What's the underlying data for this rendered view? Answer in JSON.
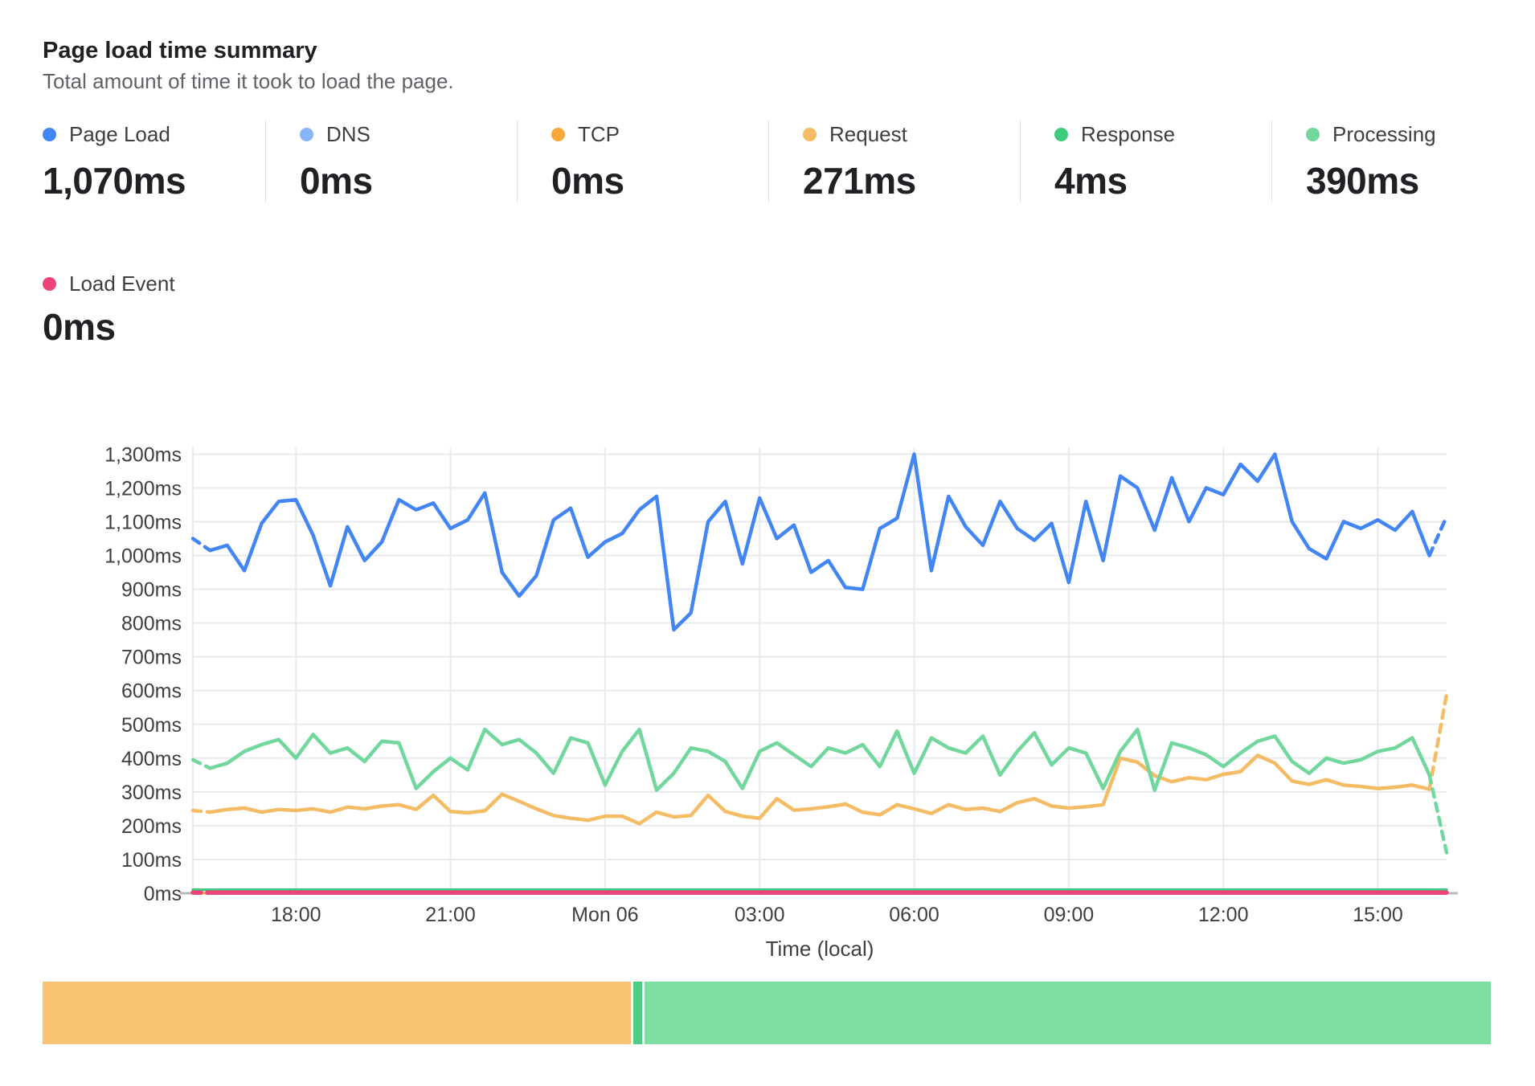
{
  "header": {
    "title": "Page load time summary",
    "subtitle": "Total amount of time it took to load the page."
  },
  "stats": [
    {
      "label": "Page Load",
      "value": "1,070ms",
      "color": "#4285f4"
    },
    {
      "label": "DNS",
      "value": "0ms",
      "color": "#8ab4f8"
    },
    {
      "label": "TCP",
      "value": "0ms",
      "color": "#f9a83c"
    },
    {
      "label": "Request",
      "value": "271ms",
      "color": "#f5bc66"
    },
    {
      "label": "Response",
      "value": "4ms",
      "color": "#3ecb7e"
    },
    {
      "label": "Processing",
      "value": "390ms",
      "color": "#71d79d"
    }
  ],
  "stats_row2": [
    {
      "label": "Load Event",
      "value": "0ms",
      "color": "#ec4378"
    }
  ],
  "chart_data": {
    "type": "line",
    "title": "Page load time summary",
    "xlabel": "Time (local)",
    "ylabel": "",
    "ylim": [
      0,
      1320
    ],
    "grid": true,
    "point_interval_minutes": 20,
    "y_ticks": [
      "0ms",
      "100ms",
      "200ms",
      "300ms",
      "400ms",
      "500ms",
      "600ms",
      "700ms",
      "800ms",
      "900ms",
      "1,000ms",
      "1,100ms",
      "1,200ms",
      "1,300ms"
    ],
    "x_ticks": [
      {
        "label": "18:00",
        "index": 6
      },
      {
        "label": "21:00",
        "index": 15
      },
      {
        "label": "Mon 06",
        "index": 24
      },
      {
        "label": "03:00",
        "index": 33
      },
      {
        "label": "06:00",
        "index": 42
      },
      {
        "label": "09:00",
        "index": 51
      },
      {
        "label": "12:00",
        "index": 60
      },
      {
        "label": "15:00",
        "index": 69
      }
    ],
    "series": [
      {
        "name": "DNS",
        "color": "#8ab4f8",
        "width": 3,
        "dash_head": false,
        "dash_tail": false,
        "values": {
          "constant": 0,
          "count": 74
        }
      },
      {
        "name": "TCP",
        "color": "#f9a83c",
        "width": 3,
        "dash_head": false,
        "dash_tail": false,
        "values": {
          "constant": 0,
          "count": 74
        }
      },
      {
        "name": "Response",
        "color": "#3ecb7e",
        "width": 3.5,
        "dash_head": false,
        "dash_tail": false,
        "values": {
          "constant": 10,
          "count": 74
        }
      },
      {
        "name": "Request",
        "color": "#f5bc66",
        "width": 4.5,
        "dash_head": true,
        "dash_tail": true,
        "values": [
          245,
          240,
          248,
          252,
          240,
          248,
          245,
          250,
          240,
          255,
          250,
          258,
          262,
          248,
          290,
          242,
          238,
          244,
          293,
          272,
          250,
          230,
          222,
          216,
          228,
          228,
          206,
          240,
          226,
          230,
          290,
          242,
          228,
          222,
          280,
          246,
          250,
          256,
          264,
          240,
          232,
          262,
          250,
          236,
          262,
          248,
          252,
          242,
          268,
          280,
          258,
          252,
          256,
          262,
          400,
          388,
          348,
          330,
          342,
          336,
          352,
          360,
          408,
          385,
          332,
          322,
          336,
          320,
          316,
          310,
          314,
          320,
          308,
          590
        ]
      },
      {
        "name": "Processing",
        "color": "#71d79d",
        "width": 4.5,
        "dash_head": true,
        "dash_tail": true,
        "values": [
          395,
          370,
          385,
          420,
          440,
          455,
          400,
          470,
          415,
          430,
          390,
          450,
          445,
          310,
          360,
          400,
          365,
          485,
          440,
          455,
          415,
          355,
          460,
          445,
          320,
          420,
          485,
          305,
          355,
          430,
          420,
          390,
          310,
          420,
          445,
          410,
          375,
          430,
          415,
          440,
          375,
          480,
          355,
          460,
          430,
          415,
          465,
          350,
          420,
          475,
          380,
          430,
          415,
          310,
          420,
          485,
          305,
          445,
          430,
          410,
          375,
          415,
          450,
          465,
          390,
          355,
          400,
          385,
          395,
          420,
          430,
          460,
          350,
          120
        ]
      },
      {
        "name": "Page Load",
        "color": "#4285f4",
        "width": 4.5,
        "dash_head": true,
        "dash_tail": true,
        "values": [
          1050,
          1015,
          1030,
          955,
          1095,
          1160,
          1165,
          1060,
          910,
          1085,
          985,
          1040,
          1165,
          1135,
          1155,
          1080,
          1105,
          1185,
          950,
          880,
          940,
          1105,
          1140,
          995,
          1040,
          1065,
          1135,
          1175,
          780,
          830,
          1100,
          1160,
          975,
          1170,
          1050,
          1090,
          950,
          985,
          905,
          900,
          1080,
          1110,
          1300,
          955,
          1175,
          1085,
          1030,
          1160,
          1080,
          1045,
          1095,
          920,
          1160,
          985,
          1235,
          1200,
          1075,
          1230,
          1100,
          1200,
          1180,
          1270,
          1220,
          1300,
          1100,
          1020,
          990,
          1100,
          1080,
          1105,
          1075,
          1130,
          1000,
          1115
        ]
      },
      {
        "name": "Load Event",
        "color": "#ec4378",
        "width": 5.5,
        "dash_head": true,
        "dash_tail": false,
        "values": {
          "constant": 2,
          "count": 74
        }
      }
    ]
  },
  "waterfall": {
    "segments": [
      {
        "name": "Request",
        "ms": 271,
        "color": "#f9c272"
      },
      {
        "name": "Response",
        "ms": 4,
        "color": "#4fcd86"
      },
      {
        "name": "Processing",
        "ms": 390,
        "color": "#7edda1"
      }
    ]
  }
}
